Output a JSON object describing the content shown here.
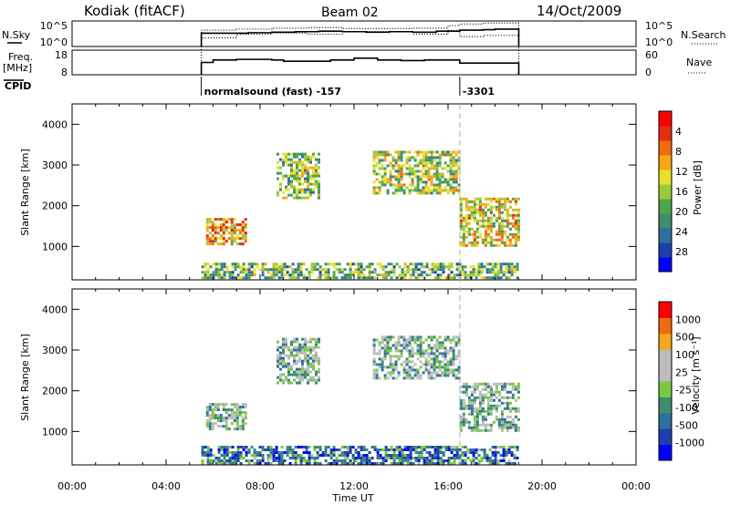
{
  "header": {
    "station": "Kodiak (fitACF)",
    "beam": "Beam 02",
    "date": "14/Oct/2009"
  },
  "chart_data": [
    {
      "type": "line",
      "panel": "noise",
      "left_label": "N.Sky",
      "right_label": "N.Search",
      "left_ticks": [
        "10^5",
        "10^0"
      ],
      "right_ticks": [
        "10^5",
        "10^0"
      ],
      "series": [
        {
          "name": "N.Sky",
          "style": "solid",
          "x": [
            5.5,
            6.5,
            7.5,
            8.5,
            9.5,
            10.5,
            11.5,
            12.5,
            13.5,
            14.5,
            15.5,
            16.5,
            17.5,
            18.0,
            19.0
          ],
          "y": [
            2.6,
            2.6,
            2.7,
            2.8,
            2.9,
            3.0,
            2.9,
            2.8,
            2.9,
            2.8,
            3.0,
            3.2,
            3.3,
            3.4,
            3.4
          ]
        },
        {
          "name": "N.Search",
          "style": "dotted",
          "x": [
            5.5,
            7.0,
            8.5,
            10.0,
            11.5,
            13.0,
            14.5,
            16.0,
            16.5,
            17.5,
            19.0
          ],
          "y": [
            3.2,
            3.4,
            3.6,
            3.7,
            3.5,
            3.5,
            3.6,
            4.1,
            4.4,
            4.6,
            4.6
          ]
        }
      ]
    },
    {
      "type": "line",
      "panel": "freq-nave",
      "left_label": "Freq. [MHz]",
      "right_label": "Nave",
      "left_ticks": [
        "18",
        "8"
      ],
      "right_ticks": [
        "60",
        "0"
      ],
      "series": [
        {
          "name": "Freq",
          "style": "solid",
          "x": [
            5.5,
            6.0,
            7.0,
            8.5,
            9.0,
            10.0,
            11.0,
            12.0,
            13.0,
            14.0,
            15.0,
            16.5,
            17.0,
            18.0,
            19.0
          ],
          "y": [
            10,
            12,
            12.5,
            12,
            11,
            11,
            12,
            13.5,
            12,
            11.5,
            12,
            9.5,
            9.5,
            9.5,
            9.5
          ]
        },
        {
          "name": "Nave",
          "style": "dotted",
          "x": [
            5.5,
            7.0,
            8.5,
            10.0,
            11.5,
            13.0,
            14.5,
            16.0,
            16.5,
            17.5,
            19.0
          ],
          "y": [
            30,
            33,
            34,
            33,
            35,
            35,
            33,
            36,
            31,
            32,
            31
          ]
        }
      ]
    },
    {
      "type": "table",
      "panel": "cpid",
      "label": "CPID",
      "segments": [
        {
          "start": 5.5,
          "end": 16.5,
          "text": "normalsound (fast) -157"
        },
        {
          "start": 16.5,
          "end": 19.0,
          "text": "-3301"
        }
      ]
    },
    {
      "type": "heatmap",
      "panel": "power",
      "ylabel": "Slant Range [km]",
      "xlim": [
        0,
        24
      ],
      "ylim": [
        180,
        4500
      ],
      "y_ticks": [
        1000,
        2000,
        3000,
        4000
      ],
      "colorbar": {
        "label": "Power [dB]",
        "ticks": [
          "4",
          "8",
          "12",
          "16",
          "20",
          "24",
          "28"
        ],
        "colors": [
          "#0000ff",
          "#1f3fae",
          "#2f6f9e",
          "#3e8e6e",
          "#4fa64a",
          "#9bcb3c",
          "#e8e12c",
          "#f6a81a",
          "#f06a0f",
          "#e03010",
          "#ff0000"
        ]
      },
      "regions": [
        {
          "t0": 5.5,
          "t1": 19.0,
          "r0": 200,
          "r1": 600,
          "level": 0.45
        },
        {
          "t0": 5.7,
          "t1": 7.4,
          "r0": 1050,
          "r1": 1700,
          "level": 0.75
        },
        {
          "t0": 8.7,
          "t1": 10.5,
          "r0": 2200,
          "r1": 3300,
          "level": 0.5
        },
        {
          "t0": 12.8,
          "t1": 16.5,
          "r0": 2300,
          "r1": 3350,
          "level": 0.55
        },
        {
          "t0": 16.5,
          "t1": 19.0,
          "r0": 1000,
          "r1": 2200,
          "level": 0.65
        }
      ]
    },
    {
      "type": "heatmap",
      "panel": "velocity",
      "xlabel": "Time UT",
      "ylabel": "Slant Range [km]",
      "xlim": [
        0,
        24
      ],
      "ylim": [
        180,
        4500
      ],
      "x_ticks": [
        "00:00",
        "04:00",
        "08:00",
        "12:00",
        "16:00",
        "20:00",
        "00:00"
      ],
      "y_ticks": [
        1000,
        2000,
        3000,
        4000
      ],
      "colorbar": {
        "label": "Velocity [m s⁻¹]",
        "ticks": [
          "1000",
          "500",
          "100",
          "25",
          "-25",
          "-100",
          "-500",
          "-1000"
        ],
        "colors": [
          "#0000ff",
          "#1f3fae",
          "#2f6f9e",
          "#3e8e6e",
          "#79c843",
          "#bcbcbc",
          "#bcbcbc",
          "#f6a81a",
          "#f06a0f",
          "#ff0000"
        ]
      },
      "regions": [
        {
          "t0": 5.5,
          "t1": 19.0,
          "r0": 200,
          "r1": 650,
          "level": 0.3
        },
        {
          "t0": 5.7,
          "t1": 7.4,
          "r0": 1050,
          "r1": 1700,
          "level": 0.5
        },
        {
          "t0": 8.7,
          "t1": 10.5,
          "r0": 2200,
          "r1": 3300,
          "level": 0.5
        },
        {
          "t0": 12.8,
          "t1": 16.5,
          "r0": 2300,
          "r1": 3350,
          "level": 0.5
        },
        {
          "t0": 16.5,
          "t1": 19.0,
          "r0": 1000,
          "r1": 2200,
          "level": 0.5
        }
      ]
    }
  ]
}
